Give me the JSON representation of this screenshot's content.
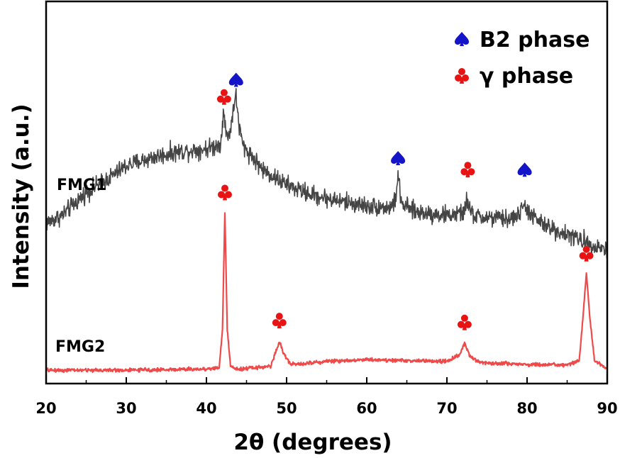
{
  "chart_data": {
    "type": "line",
    "title": "",
    "xlabel": "2θ (degrees)",
    "ylabel": "Intensity (a.u.)",
    "xlim": [
      20,
      90
    ],
    "ylim": [
      0,
      100
    ],
    "xticks": [
      20,
      30,
      40,
      50,
      60,
      70,
      80,
      90
    ],
    "xtick_labels": [
      "20",
      "30",
      "40",
      "50",
      "60",
      "70",
      "80",
      "90"
    ],
    "y_ticks_shown": false,
    "grid": false,
    "legend_position": "top-right",
    "legend": [
      {
        "symbol": "spade",
        "label": "B2 phase",
        "color": "#1414c8"
      },
      {
        "symbol": "club",
        "label": "γ phase",
        "color": "#e81414"
      }
    ],
    "series": [
      {
        "name": "FMG1",
        "color": "#454545",
        "label_color": "#1a1a1a",
        "noise_amplitude": 3.5,
        "x": [
          20,
          22,
          25,
          28,
          30,
          33,
          36,
          38,
          40,
          41,
          41.8,
          42.1,
          42.5,
          43.0,
          43.4,
          43.7,
          44.1,
          44.6,
          45.5,
          47,
          50,
          53,
          56,
          60,
          63,
          63.6,
          63.9,
          64.3,
          66,
          70,
          72,
          72.5,
          73,
          74,
          78,
          79.3,
          79.7,
          80.3,
          82,
          85,
          88,
          90
        ],
        "y": [
          42,
          44,
          50,
          54,
          57,
          59,
          60.5,
          61,
          61.5,
          62,
          63,
          71,
          65,
          66,
          73,
          75,
          67,
          62,
          60,
          56,
          52,
          49.5,
          48,
          46.5,
          46,
          48,
          55,
          47,
          45,
          44,
          44.5,
          48,
          44.5,
          43.5,
          43,
          45,
          47,
          44.5,
          41.5,
          39,
          36.5,
          35
        ]
      },
      {
        "name": "FMG2",
        "color": "#ef4a4a",
        "label_color": "#e82828",
        "noise_amplitude": 0.7,
        "x": [
          20,
          30,
          40,
          41.6,
          42.0,
          42.3,
          42.6,
          43.0,
          44,
          48,
          48.6,
          49.1,
          49.6,
          50.5,
          55,
          60,
          65,
          70,
          71.6,
          72.2,
          72.8,
          74,
          80,
          85,
          86.5,
          87.0,
          87.4,
          87.8,
          88.4,
          90
        ],
        "y": [
          3.5,
          3.5,
          3.8,
          4.2,
          14,
          45,
          14,
          4.5,
          3.8,
          4.5,
          8,
          11,
          8,
          5,
          5.8,
          6.3,
          6,
          5.8,
          7.5,
          10.5,
          7.5,
          5.5,
          5,
          4.8,
          6,
          18,
          29,
          18,
          6,
          3.8
        ]
      }
    ],
    "annotations": [
      {
        "symbol": "spade",
        "x": 43.7,
        "y": 79.5,
        "phase": "B2"
      },
      {
        "symbol": "club",
        "x": 42.2,
        "y": 75,
        "phase": "γ"
      },
      {
        "symbol": "spade",
        "x": 63.9,
        "y": 59,
        "phase": "B2"
      },
      {
        "symbol": "club",
        "x": 72.6,
        "y": 56,
        "phase": "γ"
      },
      {
        "symbol": "spade",
        "x": 79.7,
        "y": 56,
        "phase": "B2"
      },
      {
        "symbol": "club",
        "x": 42.3,
        "y": 50,
        "phase": "γ"
      },
      {
        "symbol": "club",
        "x": 49.1,
        "y": 16.5,
        "phase": "γ"
      },
      {
        "symbol": "club",
        "x": 72.2,
        "y": 16,
        "phase": "γ"
      },
      {
        "symbol": "club",
        "x": 87.4,
        "y": 34,
        "phase": "γ"
      }
    ]
  }
}
